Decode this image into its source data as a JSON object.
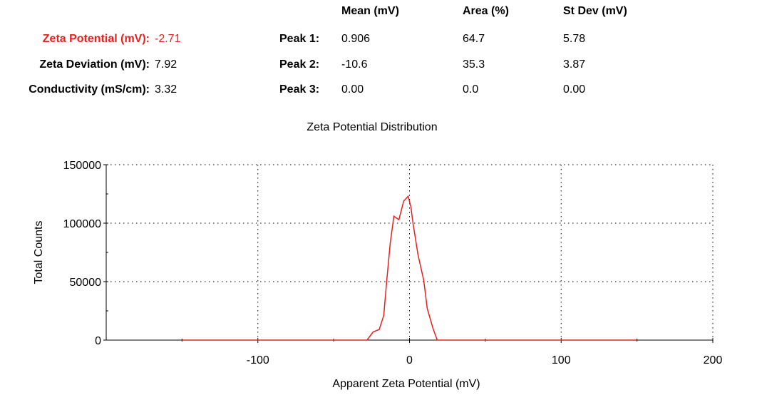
{
  "summary": {
    "zeta_potential": {
      "label": "Zeta Potential (mV):",
      "value": "-2.71"
    },
    "zeta_deviation": {
      "label": "Zeta Deviation (mV):",
      "value": "7.92"
    },
    "conductivity": {
      "label": "Conductivity (mS/cm):",
      "value": "3.32"
    }
  },
  "peaks_table": {
    "headers": [
      "Mean (mV)",
      "Area (%)",
      "St Dev (mV)"
    ],
    "rows": [
      {
        "label": "Peak 1:",
        "mean": "0.906",
        "area": "64.7",
        "stdev": "5.78"
      },
      {
        "label": "Peak 2:",
        "mean": "-10.6",
        "area": "35.3",
        "stdev": "3.87"
      },
      {
        "label": "Peak 3:",
        "mean": "0.00",
        "area": "0.0",
        "stdev": "0.00"
      }
    ]
  },
  "colors": {
    "highlight": "#e8201e",
    "series": "#e8201e"
  },
  "chart_data": {
    "type": "line",
    "title": "Zeta Potential Distribution",
    "xlabel": "Apparent Zeta Potential (mV)",
    "ylabel": "Total Counts",
    "xlim": [
      -200,
      200
    ],
    "ylim": [
      0,
      150000
    ],
    "xticks": [
      -100,
      0,
      100,
      200
    ],
    "xtick_labels": [
      "-100",
      "0",
      "100",
      "200"
    ],
    "yticks": [
      0,
      50000,
      100000,
      150000
    ],
    "ytick_labels": [
      "0",
      "50000",
      "100000",
      "150000"
    ],
    "grid": "dotted",
    "series": [
      {
        "x": [
          -150,
          -28,
          -24,
          -20,
          -17,
          -15,
          -12.7,
          -10.3,
          -7,
          -3.8,
          -0.9,
          0.9,
          2.3,
          5.6,
          9.4,
          11.7,
          15.5,
          18.3,
          150
        ],
        "y": [
          0,
          0,
          7000,
          9000,
          21000,
          51000,
          83000,
          106000,
          103000,
          119000,
          123000,
          114000,
          100000,
          73000,
          51000,
          27000,
          10000,
          0,
          0
        ]
      }
    ]
  }
}
